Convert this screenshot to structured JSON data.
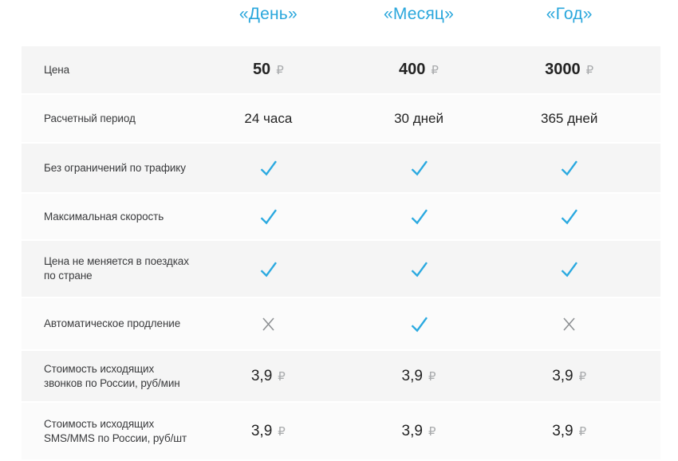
{
  "colors": {
    "header_blue": "#2aa7dc",
    "check_blue": "#2aa9e0",
    "cross_gray": "#8e9194",
    "row_gray": "#f5f5f5",
    "row_light": "#fbfbfb"
  },
  "header": {
    "columns": [
      "«День»",
      "«Месяц»",
      "«Год»"
    ]
  },
  "table": {
    "rows": [
      {
        "label": "Цена",
        "cells": [
          {
            "kind": "price",
            "value": "50",
            "currency": "₽"
          },
          {
            "kind": "price",
            "value": "400",
            "currency": "₽"
          },
          {
            "kind": "price",
            "value": "3000",
            "currency": "₽"
          }
        ]
      },
      {
        "label": "Расчетный период",
        "cells": [
          {
            "kind": "text",
            "value": "24 часа"
          },
          {
            "kind": "text",
            "value": "30 дней"
          },
          {
            "kind": "text",
            "value": "365 дней"
          }
        ]
      },
      {
        "label": "Без ограничений по трафику",
        "cells": [
          {
            "kind": "icon",
            "value": "check"
          },
          {
            "kind": "icon",
            "value": "check"
          },
          {
            "kind": "icon",
            "value": "check"
          }
        ]
      },
      {
        "label": "Максимальная скорость",
        "cells": [
          {
            "kind": "icon",
            "value": "check"
          },
          {
            "kind": "icon",
            "value": "check"
          },
          {
            "kind": "icon",
            "value": "check"
          }
        ]
      },
      {
        "label": "Цена не меняется в поездках по стране",
        "cells": [
          {
            "kind": "icon",
            "value": "check"
          },
          {
            "kind": "icon",
            "value": "check"
          },
          {
            "kind": "icon",
            "value": "check"
          }
        ]
      },
      {
        "label": "Автоматическое продление",
        "cells": [
          {
            "kind": "icon",
            "value": "cross"
          },
          {
            "kind": "icon",
            "value": "check"
          },
          {
            "kind": "icon",
            "value": "cross"
          }
        ]
      },
      {
        "label": "Стоимость исходящих звонков по России, руб/мин",
        "cells": [
          {
            "kind": "price",
            "value": "3,9",
            "currency": "₽"
          },
          {
            "kind": "price",
            "value": "3,9",
            "currency": "₽"
          },
          {
            "kind": "price",
            "value": "3,9",
            "currency": "₽"
          }
        ]
      },
      {
        "label": "Стоимость исходящих SMS/MMS по России, руб/шт",
        "cells": [
          {
            "kind": "price",
            "value": "3,9",
            "currency": "₽"
          },
          {
            "kind": "price",
            "value": "3,9",
            "currency": "₽"
          },
          {
            "kind": "price",
            "value": "3,9",
            "currency": "₽"
          }
        ]
      }
    ]
  }
}
